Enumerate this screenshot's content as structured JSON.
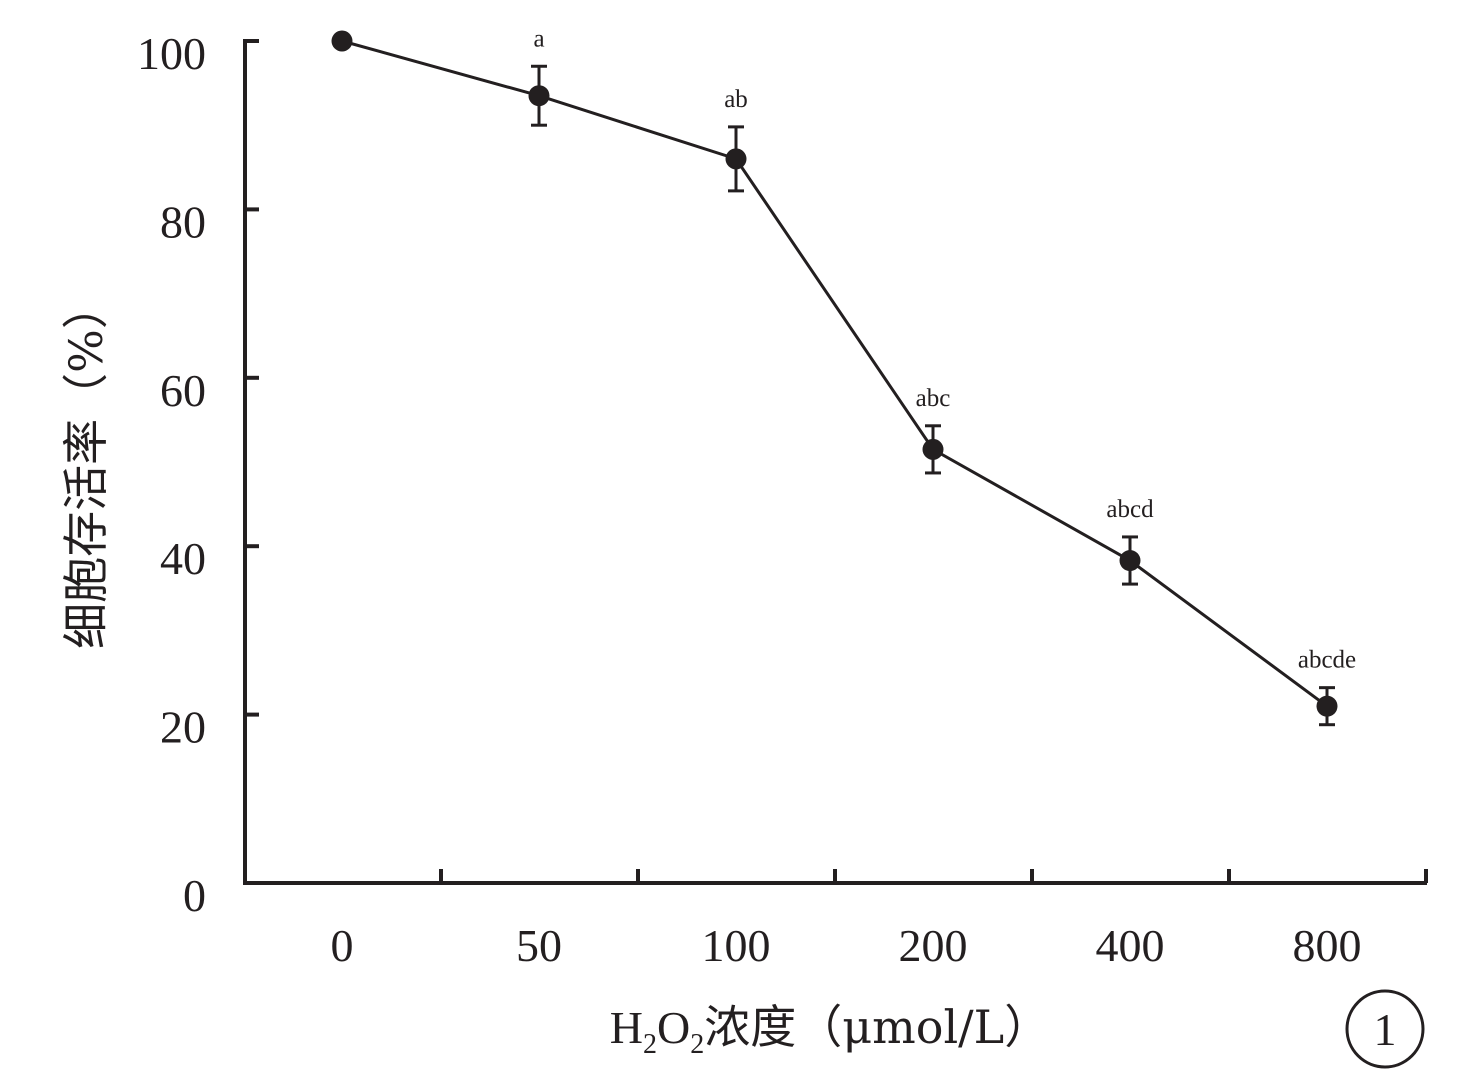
{
  "chart_data": {
    "type": "line",
    "categories": [
      "0",
      "50",
      "100",
      "200",
      "400",
      "800"
    ],
    "series": [
      {
        "values": [
          100,
          93.5,
          86,
          51.5,
          38.3,
          21
        ],
        "error": [
          0,
          3.5,
          3.8,
          2.8,
          2.8,
          2.2
        ],
        "significance": [
          "",
          "a",
          "ab",
          "abc",
          "abcd",
          "abcde"
        ]
      }
    ],
    "ylim": [
      0,
      100
    ],
    "yticks": [
      "0",
      "20",
      "40",
      "60",
      "80",
      "100"
    ],
    "ylabel": "细胞存活率（%）",
    "xlabel": {
      "prefix": "H",
      "sub1": "2",
      "mid": "O",
      "sub2": "2",
      "suffix": "浓度（μmol/L）"
    },
    "panel_label": "1",
    "grid": false,
    "legend": "none",
    "colors": {
      "ink": "#231f20",
      "background": "#ffffff"
    }
  }
}
